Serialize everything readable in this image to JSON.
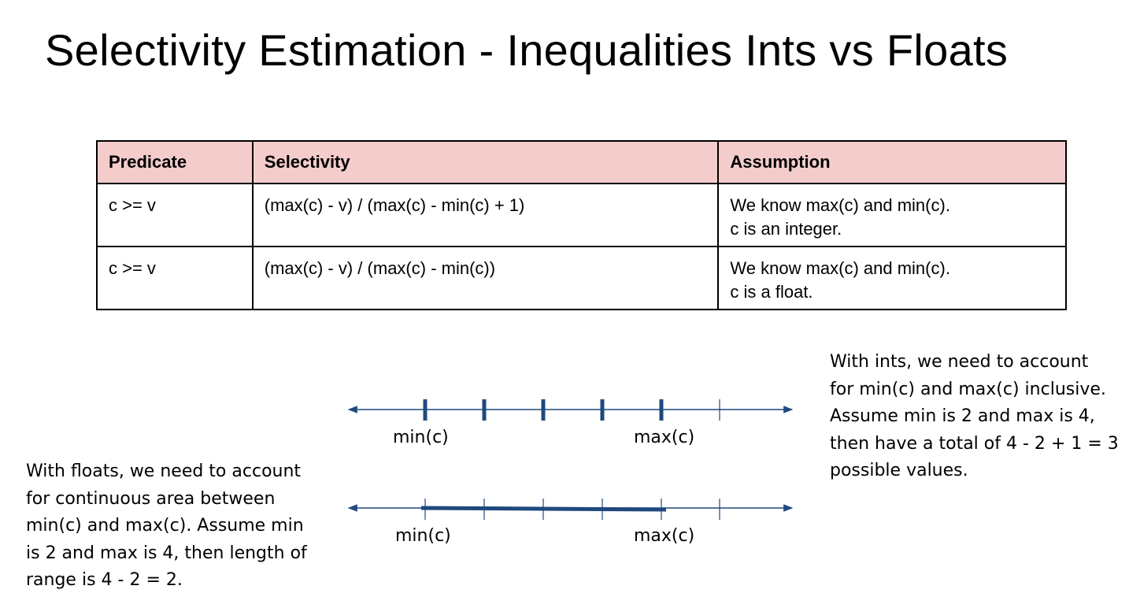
{
  "slide": {
    "title": "Selectivity Estimation - Inequalities Ints vs Floats",
    "accent_header_color": "#f4cccc",
    "line_color": "#1f497d"
  },
  "table": {
    "headers": [
      "Predicate",
      "Selectivity",
      "Assumption"
    ],
    "rows": [
      {
        "predicate": "c >= v",
        "selectivity": "(max(c) - v) / (max(c) - min(c) + 1)",
        "assumption": [
          "We know max(c) and min(c).",
          "c is an integer."
        ]
      },
      {
        "predicate": "c >= v",
        "selectivity": "(max(c) - v) / (max(c) - min(c))",
        "assumption": [
          "We know max(c) and min(c).",
          "c is a float."
        ]
      }
    ]
  },
  "ints_note": {
    "lines": [
      "With ints, we need to account",
      "for min(c) and max(c) inclusive.",
      "Assume min is 2 and max is 4,",
      "then have a total of 4 - 2 + 1 = 3",
      "possible values."
    ]
  },
  "floats_note": {
    "lines": [
      "With floats, we need to account",
      "for continuous area between",
      "min(c) and max(c). Assume min",
      "is 2 and max is 4, then length of",
      "range is 4 - 2 = 2."
    ]
  },
  "number_lines": {
    "int_line": {
      "min_label": "min(c)",
      "max_label": "max(c)"
    },
    "float_line": {
      "min_label": "min(c)",
      "max_label": "max(c)"
    }
  }
}
